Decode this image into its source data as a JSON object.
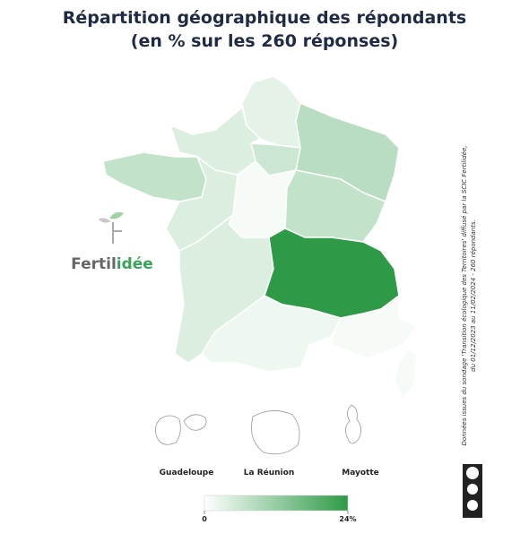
{
  "chart_data": {
    "type": "choropleth",
    "title": [
      "Répartition géographique des répondants",
      "(en % sur les 260 réponses)"
    ],
    "values": [
      3,
      6,
      4,
      8,
      7,
      4,
      1,
      7,
      4,
      24,
      2,
      1,
      1
    ],
    "color_low": "#ffffff",
    "color_high": "#2e9a47",
    "clim": [
      0,
      24
    ],
    "cticks": [
      0,
      {
        "value": 24,
        "label": "24%"
      }
    ],
    "insets": [
      "Guadeloupe",
      "La Réunion",
      "Mayotte"
    ],
    "logo": [
      "Fertil",
      "idée"
    ],
    "note": [
      "Données issues du sondage 'Transition écologique des Territoires' diffusé par la SCIC Fertilidée,",
      "du 01/12/2023 au 11/02/2024 - 260 répondants."
    ]
  }
}
